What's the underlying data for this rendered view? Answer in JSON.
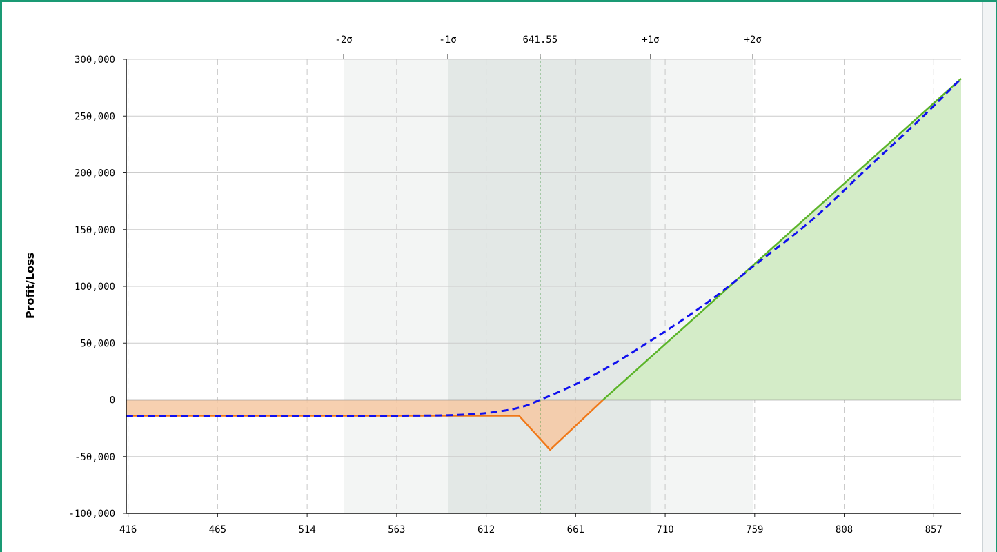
{
  "chart_data": {
    "type": "line",
    "ylabel": "Profit/Loss",
    "x_ticks": [
      "416",
      "465",
      "514",
      "563",
      "612",
      "661",
      "710",
      "759",
      "808",
      "857"
    ],
    "y_ticks": [
      "300,000",
      "250,000",
      "200,000",
      "150,000",
      "100,000",
      "50,000",
      "0",
      "-50,000",
      "-100,000"
    ],
    "top_ticks": [
      "-2σ",
      "-1σ",
      "641.55",
      "+1σ",
      "+2σ"
    ],
    "xlim": [
      415,
      872
    ],
    "ylim": [
      -100000,
      300000
    ],
    "current_price": 641.55,
    "sigma_bands": {
      "one_sigma": [
        591,
        702
      ],
      "two_sigma": [
        534,
        758
      ]
    },
    "series": [
      {
        "role": "at-expiration",
        "x": [
          415,
          630,
          647,
          676,
          872
        ],
        "y": [
          -14000,
          -14000,
          -44000,
          0,
          283000
        ]
      },
      {
        "role": "today",
        "x": [
          415,
          560,
          600,
          620,
          632,
          641.55,
          660,
          680,
          700,
          720,
          740,
          760,
          790,
          820,
          850,
          872
        ],
        "y": [
          -14000,
          -14000,
          -13000,
          -10000,
          -6000,
          0,
          13000,
          30000,
          50000,
          71000,
          94000,
          120000,
          158000,
          203000,
          248000,
          283000
        ]
      }
    ],
    "colors": {
      "loss_line": "#f07818",
      "loss_fill": "#f6c8a2",
      "profit_line": "#5ab428",
      "profit_fill": "#d4ecc8",
      "today_line": "#1010ee",
      "one_sigma_band": "#e3e8e6",
      "two_sigma_band": "#f3f5f4",
      "current_price_line": "#2a8a2a"
    },
    "grid": true
  }
}
